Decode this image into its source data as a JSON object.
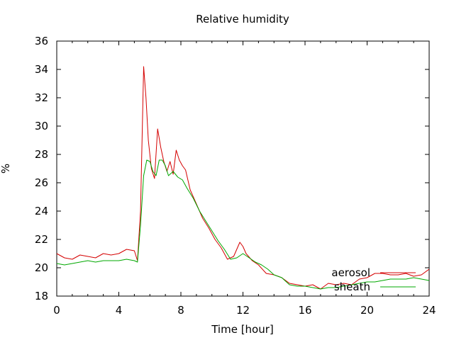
{
  "chart_data": {
    "type": "line",
    "title": "Relative humidity",
    "xlabel": "Time [hour]",
    "ylabel": "%",
    "xlim": [
      0,
      24
    ],
    "ylim": [
      18,
      36
    ],
    "xticks": [
      0,
      4,
      8,
      12,
      16,
      20,
      24
    ],
    "yticks": [
      18,
      20,
      22,
      24,
      26,
      28,
      30,
      32,
      34,
      36
    ],
    "grid": false,
    "legend_position": "bottom-right",
    "series": [
      {
        "name": "aerosol",
        "color": "#d40000",
        "x": [
          0,
          0.5,
          1,
          1.5,
          2,
          2.5,
          3,
          3.5,
          4,
          4.5,
          5,
          5.2,
          5.4,
          5.6,
          5.75,
          5.9,
          6.1,
          6.3,
          6.5,
          6.7,
          6.9,
          7.1,
          7.3,
          7.5,
          7.7,
          7.9,
          8.1,
          8.3,
          8.6,
          9,
          9.4,
          9.8,
          10.2,
          10.6,
          11,
          11.4,
          11.8,
          12.0,
          12.2,
          12.6,
          13,
          13.5,
          14,
          14.5,
          15,
          15.5,
          16,
          16.5,
          17,
          17.5,
          18,
          18.5,
          19,
          19.5,
          20,
          20.5,
          21,
          21.5,
          22,
          22.5,
          23,
          23.5,
          24
        ],
        "values": [
          21.0,
          20.7,
          20.6,
          20.9,
          20.8,
          20.7,
          21.0,
          20.9,
          21.0,
          21.3,
          21.2,
          20.5,
          24.0,
          34.2,
          32.0,
          29.0,
          27.0,
          26.3,
          29.8,
          28.5,
          27.5,
          26.8,
          27.5,
          26.6,
          28.3,
          27.6,
          27.2,
          26.9,
          25.5,
          24.5,
          23.5,
          22.8,
          22.0,
          21.4,
          20.6,
          20.8,
          21.8,
          21.5,
          21.0,
          20.5,
          20.2,
          19.6,
          19.5,
          19.3,
          18.9,
          18.8,
          18.7,
          18.8,
          18.5,
          18.9,
          18.8,
          18.9,
          18.8,
          19.2,
          19.3,
          19.6,
          19.6,
          19.5,
          19.5,
          19.6,
          19.4,
          19.5,
          19.9
        ]
      },
      {
        "name": "sheath",
        "color": "#00a800",
        "x": [
          0,
          0.5,
          1,
          1.5,
          2,
          2.5,
          3,
          3.5,
          4,
          4.5,
          5,
          5.2,
          5.4,
          5.6,
          5.8,
          6.0,
          6.2,
          6.4,
          6.6,
          6.8,
          7.0,
          7.2,
          7.5,
          7.8,
          8.1,
          8.4,
          8.8,
          9.2,
          9.6,
          10,
          10.4,
          10.8,
          11.2,
          11.6,
          12,
          12.4,
          12.8,
          13.2,
          13.6,
          14,
          14.5,
          15,
          15.5,
          16,
          16.5,
          17,
          17.5,
          18,
          18.5,
          19,
          19.5,
          20,
          20.5,
          21,
          21.5,
          22,
          22.5,
          23,
          23.5,
          24
        ],
        "values": [
          20.3,
          20.2,
          20.3,
          20.4,
          20.5,
          20.4,
          20.5,
          20.5,
          20.5,
          20.6,
          20.5,
          20.4,
          23.0,
          26.5,
          27.6,
          27.5,
          26.8,
          26.5,
          27.6,
          27.6,
          27.2,
          26.5,
          26.8,
          26.4,
          26.2,
          25.6,
          24.9,
          24.0,
          23.3,
          22.6,
          21.9,
          21.3,
          20.6,
          20.7,
          21.0,
          20.7,
          20.4,
          20.2,
          19.9,
          19.5,
          19.3,
          18.8,
          18.7,
          18.7,
          18.6,
          18.5,
          18.6,
          18.6,
          18.7,
          18.8,
          18.9,
          19.0,
          19.0,
          19.1,
          19.2,
          19.2,
          19.2,
          19.3,
          19.2,
          19.1
        ]
      }
    ]
  }
}
